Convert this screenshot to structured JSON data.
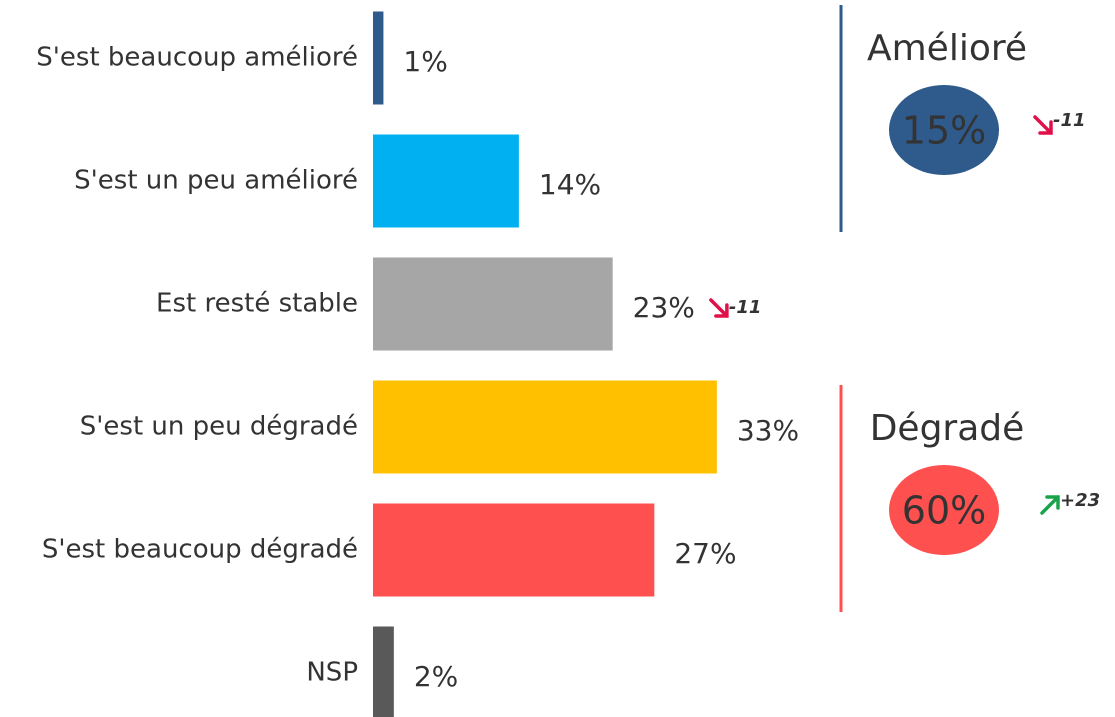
{
  "chart_data": {
    "type": "bar",
    "orientation": "horizontal",
    "categories": [
      "S'est beaucoup amélioré",
      "S'est un peu amélioré",
      "Est resté stable",
      "S'est un peu dégradé",
      "S'est beaucoup dégradé",
      "NSP"
    ],
    "values": [
      1,
      14,
      23,
      33,
      27,
      2
    ],
    "value_labels": [
      "1%",
      "14%",
      "23%",
      "33%",
      "27%",
      "2%"
    ],
    "colors": [
      "#2e5a8c",
      "#00b0f0",
      "#a6a6a6",
      "#ffc000",
      "#ff5050",
      "#595959"
    ],
    "value_deltas": [
      null,
      null,
      "-11",
      null,
      null,
      null
    ],
    "groups": [
      {
        "label": "Amélioré",
        "value": 15,
        "value_label": "15%",
        "delta": "-11",
        "color": "#2e5a8c"
      },
      {
        "label": "Dégradé",
        "value": 60,
        "value_label": "60%",
        "delta": "+23",
        "color": "#ff5050"
      }
    ]
  }
}
